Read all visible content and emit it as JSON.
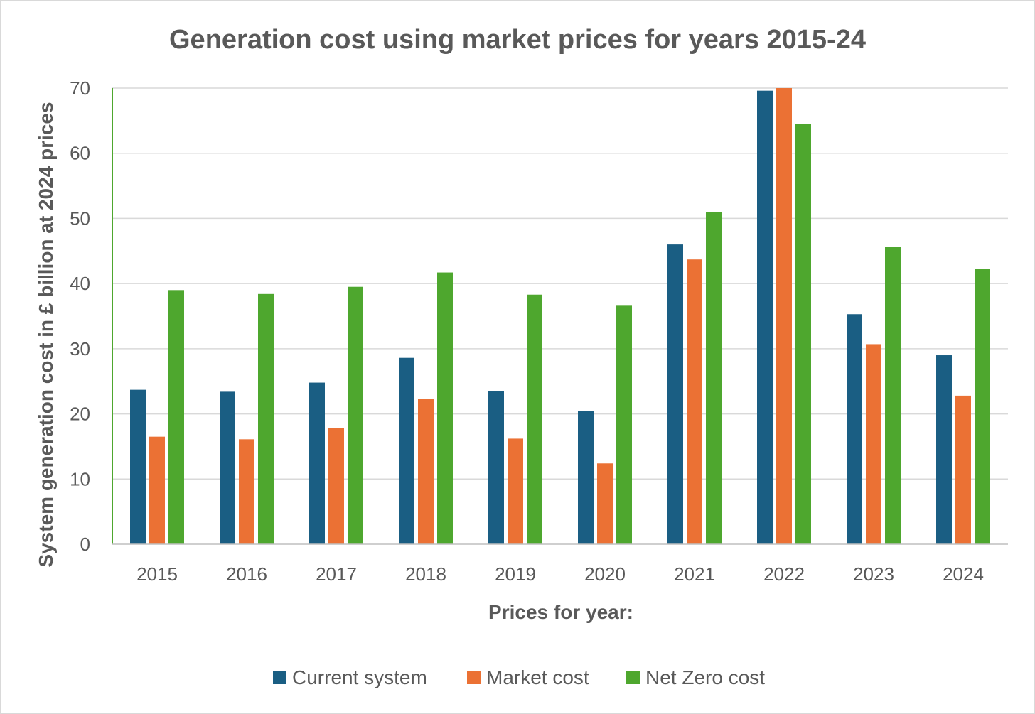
{
  "chart_data": {
    "type": "bar",
    "title": "Generation cost using market prices for years 2015-24",
    "xlabel": "Prices for year:",
    "ylabel": "System generation cost in £ billion at 2024 prices",
    "ylim": [
      0,
      70
    ],
    "yticks": [
      0,
      10,
      20,
      30,
      40,
      50,
      60,
      70
    ],
    "grid": true,
    "legend_position": "bottom",
    "categories": [
      "2015",
      "2016",
      "2017",
      "2018",
      "2019",
      "2020",
      "2021",
      "2022",
      "2023",
      "2024"
    ],
    "series": [
      {
        "name": "Current system",
        "color": "#1a5e83",
        "values": [
          23.7,
          23.4,
          24.8,
          28.6,
          23.5,
          20.4,
          46.0,
          69.6,
          35.3,
          29.0
        ]
      },
      {
        "name": "Market cost",
        "color": "#eb7134",
        "values": [
          16.5,
          16.1,
          17.8,
          22.3,
          16.2,
          12.4,
          43.7,
          70.1,
          30.7,
          22.8
        ]
      },
      {
        "name": "Net Zero cost",
        "color": "#4ea72e",
        "values": [
          39.0,
          38.4,
          39.5,
          41.7,
          38.3,
          36.6,
          51.0,
          64.5,
          45.6,
          42.3
        ]
      }
    ]
  }
}
